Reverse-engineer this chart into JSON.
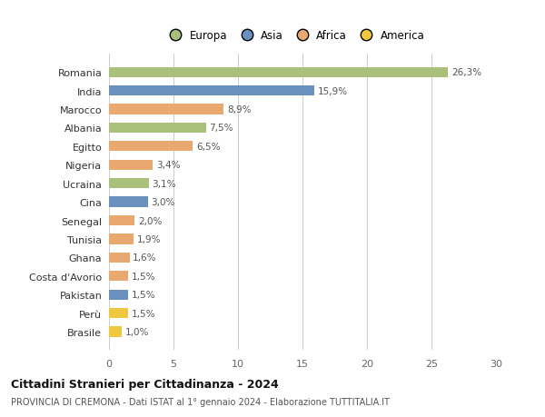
{
  "countries": [
    "Romania",
    "India",
    "Marocco",
    "Albania",
    "Egitto",
    "Nigeria",
    "Ucraina",
    "Cina",
    "Senegal",
    "Tunisia",
    "Ghana",
    "Costa d'Avorio",
    "Pakistan",
    "Perù",
    "Brasile"
  ],
  "values": [
    26.3,
    15.9,
    8.9,
    7.5,
    6.5,
    3.4,
    3.1,
    3.0,
    2.0,
    1.9,
    1.6,
    1.5,
    1.5,
    1.5,
    1.0
  ],
  "labels": [
    "26,3%",
    "15,9%",
    "8,9%",
    "7,5%",
    "6,5%",
    "3,4%",
    "3,1%",
    "3,0%",
    "2,0%",
    "1,9%",
    "1,6%",
    "1,5%",
    "1,5%",
    "1,5%",
    "1,0%"
  ],
  "bar_colors": [
    "#a8c07a",
    "#6a90c0",
    "#e8a870",
    "#a8c07a",
    "#e8a870",
    "#e8a870",
    "#a8c07a",
    "#6a90c0",
    "#e8a870",
    "#e8a870",
    "#e8a870",
    "#e8a870",
    "#6a90c0",
    "#f0c840",
    "#f0c840"
  ],
  "legend_labels": [
    "Europa",
    "Asia",
    "Africa",
    "America"
  ],
  "legend_colors": [
    "#a8c07a",
    "#6a90c0",
    "#e8a870",
    "#f0c840"
  ],
  "title": "Cittadini Stranieri per Cittadinanza - 2024",
  "subtitle": "PROVINCIA DI CREMONA - Dati ISTAT al 1° gennaio 2024 - Elaborazione TUTTITALIA.IT",
  "xlim": [
    0,
    30
  ],
  "xticks": [
    0,
    5,
    10,
    15,
    20,
    25,
    30
  ],
  "background_color": "#ffffff",
  "grid_color": "#cccccc",
  "bar_height": 0.55
}
